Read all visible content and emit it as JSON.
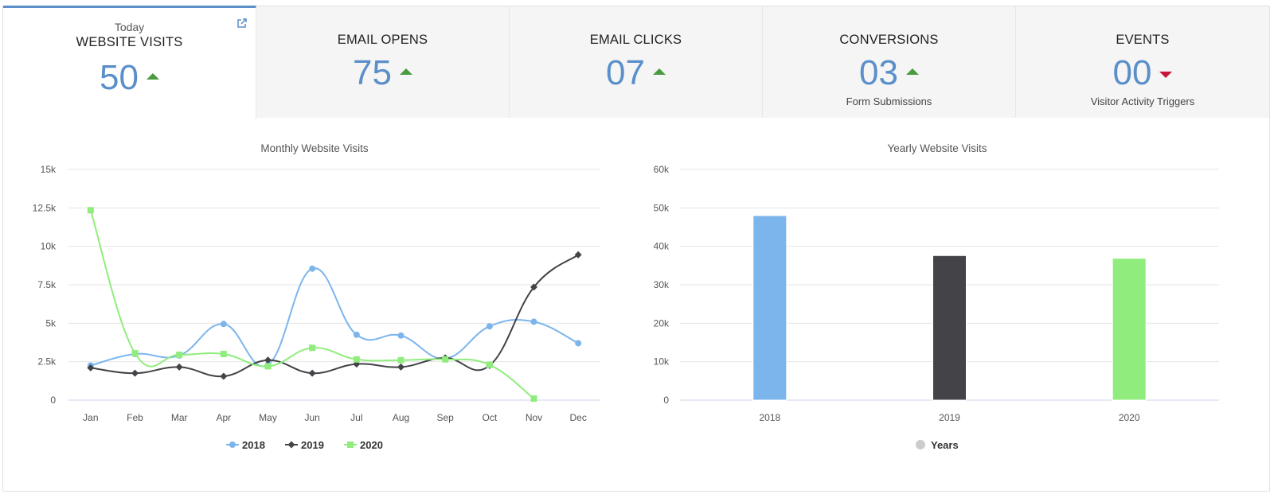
{
  "tiles": [
    {
      "period": "Today",
      "label": "WEBSITE VISITS",
      "value": "50",
      "trend": "up",
      "sub": ""
    },
    {
      "period": "",
      "label": "EMAIL OPENS",
      "value": "75",
      "trend": "up",
      "sub": ""
    },
    {
      "period": "",
      "label": "EMAIL CLICKS",
      "value": "07",
      "trend": "up",
      "sub": ""
    },
    {
      "period": "",
      "label": "CONVERSIONS",
      "value": "03",
      "trend": "up",
      "sub": "Form Submissions"
    },
    {
      "period": "",
      "label": "EVENTS",
      "value": "00",
      "trend": "down",
      "sub": "Visitor Activity Triggers"
    }
  ],
  "colors": {
    "accent": "#5b8fc9",
    "up": "#4a9a3f",
    "down": "#c8143c",
    "s2018": "#7cb5ec",
    "s2019": "#434348",
    "s2020": "#90ed7d"
  },
  "chart_data": [
    {
      "type": "line",
      "title": "Monthly Website Visits",
      "categories": [
        "Jan",
        "Feb",
        "Mar",
        "Apr",
        "May",
        "Jun",
        "Jul",
        "Aug",
        "Sep",
        "Oct",
        "Nov",
        "Dec"
      ],
      "yticks": [
        "0",
        "2.5k",
        "5k",
        "7.5k",
        "10k",
        "12.5k",
        "15k"
      ],
      "ylim": [
        0,
        15000
      ],
      "series": [
        {
          "name": "2018",
          "values": [
            2250,
            3000,
            2900,
            4950,
            2300,
            8550,
            4250,
            4200,
            2700,
            4800,
            5100,
            3700
          ]
        },
        {
          "name": "2019",
          "values": [
            2100,
            1750,
            2150,
            1550,
            2600,
            1750,
            2350,
            2150,
            2750,
            2250,
            7350,
            9450
          ]
        },
        {
          "name": "2020",
          "values": [
            12350,
            3050,
            2950,
            3000,
            2200,
            3400,
            2650,
            2600,
            2650,
            2300,
            100,
            null
          ]
        }
      ],
      "legend": "bottom-center",
      "grid": true
    },
    {
      "type": "bar",
      "title": "Yearly Website Visits",
      "categories": [
        "2018",
        "2019",
        "2020"
      ],
      "values": [
        48000,
        37600,
        36900
      ],
      "yticks": [
        "0",
        "10k",
        "20k",
        "30k",
        "40k",
        "50k",
        "60k"
      ],
      "ylim": [
        0,
        60000
      ],
      "legend_label": "Years",
      "legend": "bottom-center",
      "grid": true
    }
  ]
}
